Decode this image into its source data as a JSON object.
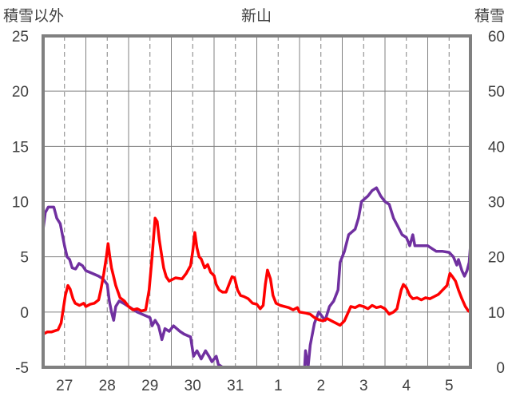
{
  "chart_data": {
    "type": "line",
    "title": "新山",
    "ylabel_left": "積雪以外",
    "ylabel_right": "積雪",
    "y_left_range": [
      -5,
      25
    ],
    "y_left_ticks": [
      "-5",
      "0",
      "5",
      "10",
      "15",
      "20",
      "25"
    ],
    "y_right_range": [
      0,
      60
    ],
    "y_right_ticks": [
      "0",
      "10",
      "20",
      "30",
      "40",
      "50",
      "60"
    ],
    "x_range": [
      0,
      10
    ],
    "x_ticks": [
      {
        "label": "27",
        "x": 0.5
      },
      {
        "label": "28",
        "x": 1.5
      },
      {
        "label": "29",
        "x": 2.5
      },
      {
        "label": "30",
        "x": 3.5
      },
      {
        "label": "31",
        "x": 4.5
      },
      {
        "label": "1",
        "x": 5.5
      },
      {
        "label": "2",
        "x": 6.5
      },
      {
        "label": "3",
        "x": 7.5
      },
      {
        "label": "4",
        "x": 8.5
      },
      {
        "label": "5",
        "x": 9.5
      }
    ],
    "grid": {
      "solid_at": [
        1,
        2,
        3,
        4,
        5,
        6,
        7,
        8,
        9,
        10
      ],
      "dashed_at": [
        0.5,
        1.5,
        2.5,
        3.5,
        4.5,
        5.5,
        6.5,
        7.5,
        8.5,
        9.5
      ],
      "horizontal": true
    },
    "series": [
      {
        "color": "#7030a0",
        "axis": "right",
        "points": [
          [
            0.0,
            25
          ],
          [
            0.05,
            28
          ],
          [
            0.12,
            29
          ],
          [
            0.25,
            29
          ],
          [
            0.32,
            27
          ],
          [
            0.4,
            26
          ],
          [
            0.45,
            24
          ],
          [
            0.5,
            22
          ],
          [
            0.56,
            20
          ],
          [
            0.62,
            19.5
          ],
          [
            0.68,
            18
          ],
          [
            0.76,
            17.8
          ],
          [
            0.84,
            18.8
          ],
          [
            0.92,
            18.4
          ],
          [
            1.0,
            17.5
          ],
          [
            1.15,
            17
          ],
          [
            1.3,
            16.5
          ],
          [
            1.4,
            16
          ],
          [
            1.5,
            15
          ],
          [
            1.55,
            12
          ],
          [
            1.6,
            10
          ],
          [
            1.65,
            8.5
          ],
          [
            1.7,
            11
          ],
          [
            1.78,
            12
          ],
          [
            1.9,
            11.5
          ],
          [
            2.0,
            11
          ],
          [
            2.1,
            10.5
          ],
          [
            2.2,
            10
          ],
          [
            2.35,
            9.5
          ],
          [
            2.5,
            9
          ],
          [
            2.55,
            7.5
          ],
          [
            2.62,
            8.5
          ],
          [
            2.7,
            7.5
          ],
          [
            2.78,
            5
          ],
          [
            2.85,
            7
          ],
          [
            2.95,
            6.5
          ],
          [
            3.05,
            7.5
          ],
          [
            3.2,
            6.5
          ],
          [
            3.3,
            6
          ],
          [
            3.45,
            5.5
          ],
          [
            3.52,
            2
          ],
          [
            3.6,
            3
          ],
          [
            3.7,
            1.5
          ],
          [
            3.8,
            3
          ],
          [
            3.88,
            2
          ],
          [
            3.95,
            1
          ],
          [
            4.05,
            2
          ],
          [
            4.1,
            0.5
          ],
          [
            4.2,
            0
          ],
          [
            4.6,
            0
          ],
          [
            5.0,
            0
          ],
          [
            5.5,
            0
          ],
          [
            6.0,
            0
          ],
          [
            6.12,
            0
          ],
          [
            6.14,
            3
          ],
          [
            6.2,
            0
          ],
          [
            6.25,
            4
          ],
          [
            6.35,
            8
          ],
          [
            6.45,
            10
          ],
          [
            6.55,
            9
          ],
          [
            6.6,
            8.5
          ],
          [
            6.7,
            11
          ],
          [
            6.8,
            12
          ],
          [
            6.9,
            14
          ],
          [
            6.95,
            19
          ],
          [
            7.05,
            21
          ],
          [
            7.15,
            24
          ],
          [
            7.3,
            25
          ],
          [
            7.38,
            27
          ],
          [
            7.45,
            30
          ],
          [
            7.6,
            31
          ],
          [
            7.7,
            32
          ],
          [
            7.8,
            32.5
          ],
          [
            7.9,
            31
          ],
          [
            8.0,
            30
          ],
          [
            8.1,
            29.5
          ],
          [
            8.2,
            27
          ],
          [
            8.3,
            25.5
          ],
          [
            8.4,
            24
          ],
          [
            8.5,
            23.5
          ],
          [
            8.58,
            22
          ],
          [
            8.65,
            24
          ],
          [
            8.7,
            22
          ],
          [
            8.75,
            22
          ],
          [
            8.9,
            22
          ],
          [
            9.0,
            22
          ],
          [
            9.1,
            21.5
          ],
          [
            9.2,
            21
          ],
          [
            9.35,
            21
          ],
          [
            9.5,
            20.8
          ],
          [
            9.6,
            20
          ],
          [
            9.68,
            18.5
          ],
          [
            9.72,
            19.5
          ],
          [
            9.8,
            17.5
          ],
          [
            9.86,
            16.5
          ],
          [
            9.92,
            17.5
          ],
          [
            9.97,
            19
          ],
          [
            10.0,
            22
          ]
        ]
      },
      {
        "color": "#ff0000",
        "axis": "left",
        "points": [
          [
            0.0,
            -2
          ],
          [
            0.1,
            -1.8
          ],
          [
            0.2,
            -1.8
          ],
          [
            0.35,
            -1.6
          ],
          [
            0.42,
            -1
          ],
          [
            0.48,
            0.5
          ],
          [
            0.52,
            1.5
          ],
          [
            0.58,
            2.4
          ],
          [
            0.63,
            2.1
          ],
          [
            0.7,
            1.2
          ],
          [
            0.75,
            0.8
          ],
          [
            0.85,
            0.6
          ],
          [
            0.95,
            0.8
          ],
          [
            1.0,
            0.5
          ],
          [
            1.1,
            0.7
          ],
          [
            1.2,
            0.8
          ],
          [
            1.3,
            1.1
          ],
          [
            1.35,
            2
          ],
          [
            1.42,
            3.5
          ],
          [
            1.48,
            5
          ],
          [
            1.52,
            6.2
          ],
          [
            1.56,
            5
          ],
          [
            1.6,
            4
          ],
          [
            1.65,
            3.2
          ],
          [
            1.7,
            2.4
          ],
          [
            1.8,
            1.3
          ],
          [
            1.9,
            1.0
          ],
          [
            2.0,
            0.5
          ],
          [
            2.1,
            0.2
          ],
          [
            2.2,
            0.3
          ],
          [
            2.3,
            0.1
          ],
          [
            2.4,
            0.2
          ],
          [
            2.48,
            2
          ],
          [
            2.55,
            5
          ],
          [
            2.62,
            8.5
          ],
          [
            2.67,
            8.2
          ],
          [
            2.72,
            6.5
          ],
          [
            2.78,
            5
          ],
          [
            2.82,
            4
          ],
          [
            2.88,
            3.2
          ],
          [
            2.95,
            2.8
          ],
          [
            3.0,
            2.9
          ],
          [
            3.1,
            3.1
          ],
          [
            3.25,
            3
          ],
          [
            3.35,
            3.5
          ],
          [
            3.45,
            4.2
          ],
          [
            3.5,
            5.5
          ],
          [
            3.55,
            7.2
          ],
          [
            3.6,
            5.8
          ],
          [
            3.65,
            5
          ],
          [
            3.7,
            4.8
          ],
          [
            3.78,
            4.0
          ],
          [
            3.85,
            4.3
          ],
          [
            3.92,
            3.6
          ],
          [
            4.0,
            3.3
          ],
          [
            4.05,
            2.5
          ],
          [
            4.12,
            2
          ],
          [
            4.2,
            1.8
          ],
          [
            4.28,
            1.8
          ],
          [
            4.35,
            2.5
          ],
          [
            4.42,
            3.2
          ],
          [
            4.48,
            3.1
          ],
          [
            4.55,
            2.0
          ],
          [
            4.62,
            1.5
          ],
          [
            4.7,
            1.4
          ],
          [
            4.8,
            1.2
          ],
          [
            4.9,
            0.8
          ],
          [
            5.0,
            0.7
          ],
          [
            5.08,
            0.3
          ],
          [
            5.15,
            0.6
          ],
          [
            5.2,
            2.5
          ],
          [
            5.25,
            3.8
          ],
          [
            5.32,
            3.0
          ],
          [
            5.38,
            1.5
          ],
          [
            5.45,
            0.8
          ],
          [
            5.55,
            0.6
          ],
          [
            5.65,
            0.5
          ],
          [
            5.75,
            0.4
          ],
          [
            5.85,
            0.2
          ],
          [
            5.95,
            0.4
          ],
          [
            6.0,
            0.0
          ],
          [
            6.15,
            -0.1
          ],
          [
            6.25,
            -0.2
          ],
          [
            6.35,
            -0.5
          ],
          [
            6.45,
            -0.7
          ],
          [
            6.55,
            -0.8
          ],
          [
            6.65,
            -0.6
          ],
          [
            6.75,
            -0.8
          ],
          [
            6.85,
            -1.0
          ],
          [
            6.95,
            -1.2
          ],
          [
            7.05,
            -0.8
          ],
          [
            7.12,
            -0.2
          ],
          [
            7.2,
            0.5
          ],
          [
            7.3,
            0.4
          ],
          [
            7.4,
            0.6
          ],
          [
            7.5,
            0.5
          ],
          [
            7.6,
            0.3
          ],
          [
            7.7,
            0.6
          ],
          [
            7.8,
            0.4
          ],
          [
            7.9,
            0.5
          ],
          [
            8.0,
            0.3
          ],
          [
            8.1,
            -0.2
          ],
          [
            8.2,
            0.0
          ],
          [
            8.28,
            0.3
          ],
          [
            8.33,
            1.2
          ],
          [
            8.38,
            2.0
          ],
          [
            8.43,
            2.5
          ],
          [
            8.5,
            2.2
          ],
          [
            8.58,
            1.5
          ],
          [
            8.65,
            1.2
          ],
          [
            8.75,
            1.3
          ],
          [
            8.85,
            1.1
          ],
          [
            8.95,
            1.3
          ],
          [
            9.05,
            1.2
          ],
          [
            9.15,
            1.4
          ],
          [
            9.25,
            1.6
          ],
          [
            9.35,
            2.0
          ],
          [
            9.45,
            2.4
          ],
          [
            9.52,
            3.5
          ],
          [
            9.58,
            3.2
          ],
          [
            9.65,
            2.8
          ],
          [
            9.72,
            2.0
          ],
          [
            9.8,
            1.2
          ],
          [
            9.88,
            0.5
          ],
          [
            9.95,
            0.1
          ],
          [
            10.0,
            0.0
          ]
        ]
      }
    ]
  }
}
